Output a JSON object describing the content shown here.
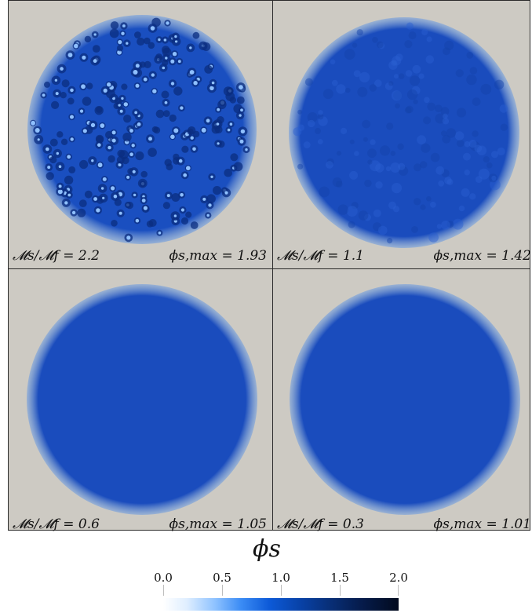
{
  "panels": [
    {
      "ratio_label": "𝓜s/𝓜f = 2.2",
      "phi_label": "ϕs,max = 1.93"
    },
    {
      "ratio_label": "𝓜s/𝓜f = 1.1",
      "phi_label": "ϕs,max = 1.42"
    },
    {
      "ratio_label": "𝓜s/𝓜f = 0.6",
      "phi_label": "ϕs,max = 1.05"
    },
    {
      "ratio_label": "𝓜s/𝓜f = 0.3",
      "phi_label": "ϕs,max = 1.01"
    }
  ],
  "colorbar": {
    "title": "ϕs",
    "ticks": [
      "0.0",
      "0.5",
      "1.0",
      "1.5",
      "2.0"
    ],
    "min": 0.0,
    "max": 2.0
  },
  "colors": {
    "background": "#cdcac3",
    "disk_fill": "#1848b8",
    "disk_dark": "#0b2e80",
    "spot_light": "#7fb4ff"
  }
}
